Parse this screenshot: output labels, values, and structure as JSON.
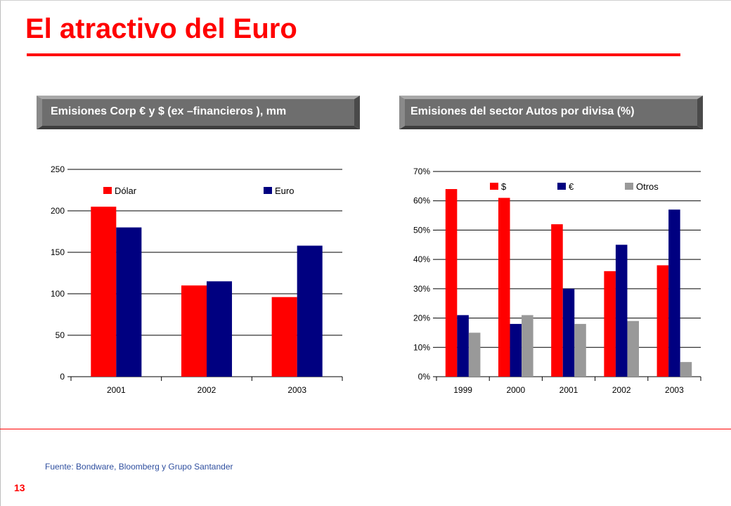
{
  "page": {
    "title": "El atractivo del Euro",
    "source": "Fuente: Bondware, Bloomberg y Grupo Santander",
    "page_number": "13",
    "colors": {
      "accent": "#ff0000",
      "navy": "#000080",
      "gray": "#999999",
      "banner": "#6e6e6e"
    }
  },
  "banners": [
    {
      "text": "Emisiones Corp € y $ (ex –financieros ), mm"
    },
    {
      "text": "Emisiones del sector Autos por divisa (%)"
    }
  ],
  "chart_data": [
    {
      "type": "bar",
      "title": "Emisiones Corp € y $ (ex –financieros ), mm",
      "categories": [
        "2001",
        "2002",
        "2003"
      ],
      "series": [
        {
          "name": "Dólar",
          "values": [
            205,
            110,
            96
          ],
          "color": "#ff0000"
        },
        {
          "name": "Euro",
          "values": [
            180,
            115,
            158
          ],
          "color": "#000080"
        }
      ],
      "ylim": [
        0,
        250
      ],
      "yticks": [
        0,
        50,
        100,
        150,
        200,
        250
      ],
      "ytick_labels": [
        "0",
        "50",
        "100",
        "150",
        "200",
        "250"
      ],
      "grid": true,
      "legend": "top"
    },
    {
      "type": "bar",
      "title": "Emisiones del sector Autos por divisa (%)",
      "categories": [
        "1999",
        "2000",
        "2001",
        "2002",
        "2003"
      ],
      "series": [
        {
          "name": "$",
          "values": [
            64,
            61,
            52,
            36,
            38
          ],
          "color": "#ff0000"
        },
        {
          "name": "€",
          "values": [
            21,
            18,
            30,
            45,
            57
          ],
          "color": "#000080"
        },
        {
          "name": "Otros",
          "values": [
            15,
            21,
            18,
            19,
            5
          ],
          "color": "#999999"
        }
      ],
      "ylim": [
        0,
        70
      ],
      "yticks": [
        0,
        10,
        20,
        30,
        40,
        50,
        60,
        70
      ],
      "ytick_labels": [
        "0%",
        "10%",
        "20%",
        "30%",
        "40%",
        "50%",
        "60%",
        "70%"
      ],
      "grid": true,
      "legend": "top"
    }
  ]
}
